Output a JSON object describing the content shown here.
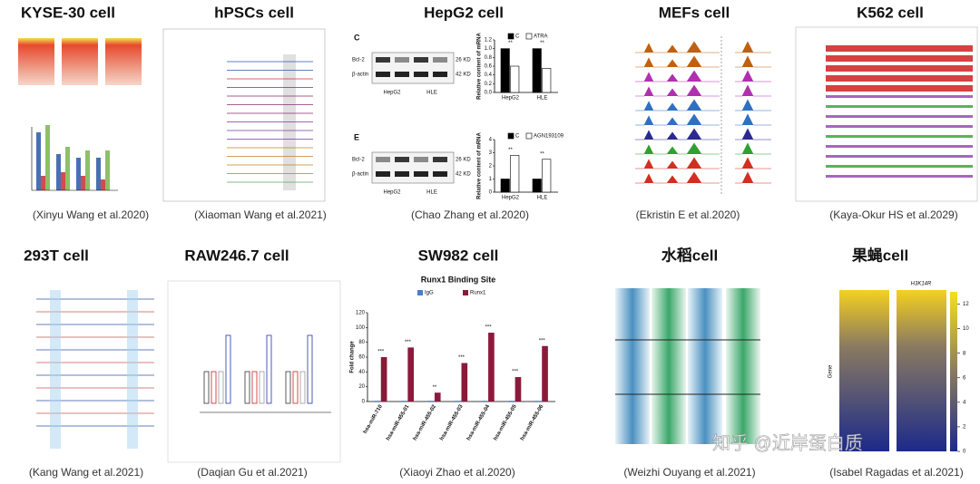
{
  "panels": [
    {
      "title": "KYSE-30 cell",
      "citation": "(Xinyu Wang et al.2020)"
    },
    {
      "title": "hPSCs cell",
      "citation": "(Xiaoman Wang et al.2021)"
    },
    {
      "title": "HepG2 cell",
      "citation": "(Chao Zhang et al.2020)"
    },
    {
      "title": "MEFs cell",
      "citation": "(Ekristin E et al.2020)"
    },
    {
      "title": "K562 cell",
      "citation": "(Kaya-Okur HS et al.2029)"
    },
    {
      "title": "293T cell",
      "citation": "(Kang Wang et al.2021)"
    },
    {
      "title": "RAW246.7 cell",
      "citation": "(Daqian Gu et al.2021)"
    },
    {
      "title": "SW982 cell",
      "citation": "(Xiaoyi Zhao et al.2020)"
    },
    {
      "title": "水稻cell",
      "citation": "(Weizhi Ouyang et al.2021)"
    },
    {
      "title": "果蝇cell",
      "citation": "(Isabel Ragadas et al.2021)"
    }
  ],
  "hepg2": {
    "blot_labels": [
      "Bcl-2",
      "β-actin"
    ],
    "blot_sizes": [
      "26 KD",
      "42 KD"
    ],
    "charts": [
      {
        "type": "bar",
        "panel_label": "C",
        "y_label": "Relative content of mRNA",
        "categories": [
          "HepG2",
          "HLE"
        ],
        "series": [
          {
            "name": "C",
            "color": "#000000",
            "values": [
              1,
              1
            ]
          },
          {
            "name": "ATRA",
            "color": "#ffffff",
            "values": [
              0.6,
              0.55
            ]
          }
        ],
        "significance": "**",
        "ylim": [
          0,
          1.2
        ],
        "yticks": [
          {
            "value": 0,
            "label": "0.0"
          },
          {
            "value": 0.2,
            "label": "0.2"
          },
          {
            "value": 0.4,
            "label": "0.4"
          },
          {
            "value": 0.6,
            "label": "0.6"
          },
          {
            "value": 0.8,
            "label": "0.8"
          },
          {
            "value": 1,
            "label": "1.0"
          },
          {
            "value": 1.2,
            "label": "1.2"
          }
        ]
      },
      {
        "type": "bar",
        "panel_label": "E",
        "y_label": "Relative content of mRNA",
        "categories": [
          "HepG2",
          "HLE"
        ],
        "series": [
          {
            "name": "C",
            "color": "#000000",
            "values": [
              1,
              1
            ]
          },
          {
            "name": "AGN193109",
            "color": "#ffffff",
            "values": [
              2.8,
              2.5
            ]
          }
        ],
        "significance": "**",
        "ylim": [
          0,
          4
        ],
        "yticks": [
          0,
          1,
          2,
          3,
          4
        ]
      }
    ]
  },
  "sw982": {
    "type": "bar",
    "title": "Runx1 Binding Site",
    "y_label": "Fold change",
    "categories": [
      "hsa-miR-710",
      "hsa-miR-455-01",
      "hsa-miR-455-02",
      "hsa-miR-455-03",
      "hsa-miR-455-04",
      "hsa-miR-455-05",
      "hsa-miR-455-06"
    ],
    "series": [
      {
        "name": "IgG",
        "color": "#4a7fc1",
        "values": [
          1,
          1,
          1,
          1,
          1,
          1,
          1
        ]
      },
      {
        "name": "Runx1",
        "color": "#8b1a3a",
        "values": [
          60,
          73,
          12,
          52,
          93,
          33,
          75
        ]
      }
    ],
    "significance": [
      "***",
      "***",
      "**",
      "***",
      "***",
      "***",
      "***"
    ],
    "ylim": [
      0,
      120
    ],
    "yticks": [
      0,
      20,
      40,
      60,
      80,
      100,
      120
    ]
  },
  "fly_colorbar": {
    "ylim": [
      0,
      13
    ],
    "yticks": [
      0,
      2,
      4,
      6,
      8,
      10,
      12
    ],
    "labels": [
      "Gene",
      "H3K14R"
    ]
  },
  "watermark": "知乎 @近岸蛋白质"
}
